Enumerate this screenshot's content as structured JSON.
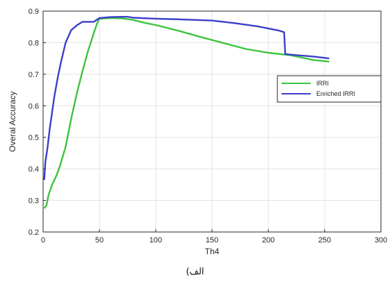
{
  "chart_data": {
    "type": "line",
    "xlabel": "Th4",
    "ylabel": "Overal Accuracy",
    "xlim": [
      0,
      300
    ],
    "ylim": [
      0.2,
      0.9
    ],
    "xticks": [
      0,
      50,
      100,
      150,
      200,
      250,
      300
    ],
    "yticks": [
      0.2,
      0.3,
      0.4,
      0.5,
      0.6,
      0.7,
      0.8,
      0.9
    ],
    "grid": true,
    "legend_position": "right",
    "series": [
      {
        "name": "IRRI",
        "color": "#3cc43c",
        "x": [
          1,
          3,
          5,
          8,
          12,
          15,
          20,
          25,
          30,
          35,
          40,
          45,
          48,
          50,
          60,
          70,
          80,
          90,
          100,
          120,
          140,
          160,
          180,
          200,
          220,
          240,
          254
        ],
        "y": [
          0.275,
          0.285,
          0.32,
          0.35,
          0.38,
          0.41,
          0.47,
          0.56,
          0.64,
          0.71,
          0.775,
          0.83,
          0.862,
          0.876,
          0.878,
          0.877,
          0.872,
          0.863,
          0.856,
          0.838,
          0.818,
          0.799,
          0.78,
          0.768,
          0.76,
          0.745,
          0.74
        ]
      },
      {
        "name": "Enriched IRRI",
        "color": "#3b3fc9",
        "x": [
          1,
          2,
          4,
          6,
          8,
          10,
          13,
          16,
          20,
          25,
          30,
          35,
          40,
          45,
          50,
          60,
          70,
          75,
          80,
          100,
          120,
          150,
          170,
          190,
          210,
          214,
          215,
          220,
          240,
          254
        ],
        "y": [
          0.365,
          0.42,
          0.47,
          0.53,
          0.58,
          0.63,
          0.69,
          0.74,
          0.8,
          0.84,
          0.855,
          0.866,
          0.866,
          0.866,
          0.878,
          0.881,
          0.882,
          0.882,
          0.879,
          0.876,
          0.874,
          0.87,
          0.862,
          0.852,
          0.838,
          0.833,
          0.764,
          0.762,
          0.756,
          0.75
        ]
      }
    ]
  },
  "caption": "الف)"
}
